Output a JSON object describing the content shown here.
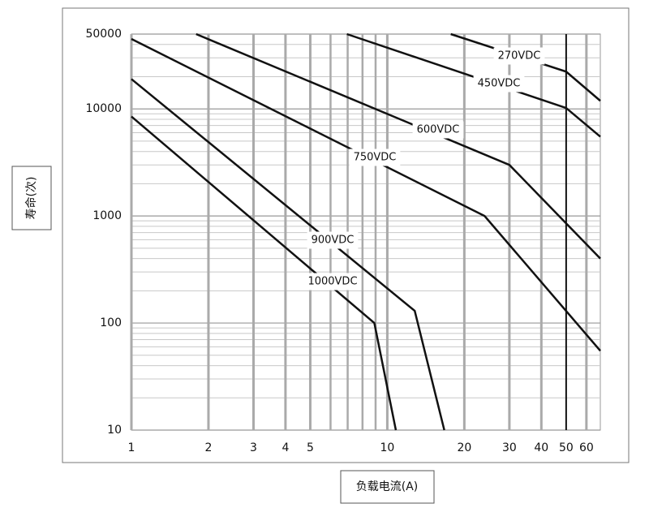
{
  "chart_data": {
    "type": "line",
    "xlabel": "负载电流(A)",
    "ylabel": "寿命(次)",
    "log_x": true,
    "log_y": true,
    "grid": true,
    "xlim": [
      1,
      68
    ],
    "ylim": [
      10,
      50000
    ],
    "xticks": [
      1,
      2,
      3,
      4,
      5,
      10,
      20,
      30,
      40,
      50,
      60
    ],
    "x_minor_ticks": [
      6,
      7,
      8,
      9
    ],
    "yticks": [
      10,
      100,
      1000,
      10000,
      50000
    ],
    "y_minor_ticks": [
      20,
      30,
      40,
      50,
      60,
      70,
      80,
      90,
      200,
      300,
      400,
      500,
      600,
      700,
      800,
      900,
      2000,
      3000,
      4000,
      5000,
      6000,
      7000,
      8000,
      9000,
      20000,
      30000,
      40000
    ],
    "highlight_xtick": 50,
    "series": [
      {
        "name": "270VDC",
        "color": "#111111",
        "x": [
          17.7,
          50,
          68
        ],
        "values": [
          50000,
          22300,
          11900
        ]
      },
      {
        "name": "450VDC",
        "color": "#111111",
        "x": [
          6.95,
          50,
          68
        ],
        "values": [
          50000,
          10200,
          5500
        ]
      },
      {
        "name": "600VDC",
        "color": "#111111",
        "x": [
          1.79,
          30,
          68
        ],
        "values": [
          50000,
          3000,
          400
        ]
      },
      {
        "name": "750VDC",
        "color": "#111111",
        "x": [
          1,
          24,
          68
        ],
        "values": [
          45000,
          1000,
          55
        ]
      },
      {
        "name": "900VDC",
        "color": "#111111",
        "x": [
          1,
          12.8,
          16.7
        ],
        "values": [
          19000,
          130,
          10
        ]
      },
      {
        "name": "1000VDC",
        "color": "#111111",
        "x": [
          1,
          8.9,
          10.8
        ],
        "values": [
          8500,
          100,
          10
        ]
      }
    ]
  }
}
